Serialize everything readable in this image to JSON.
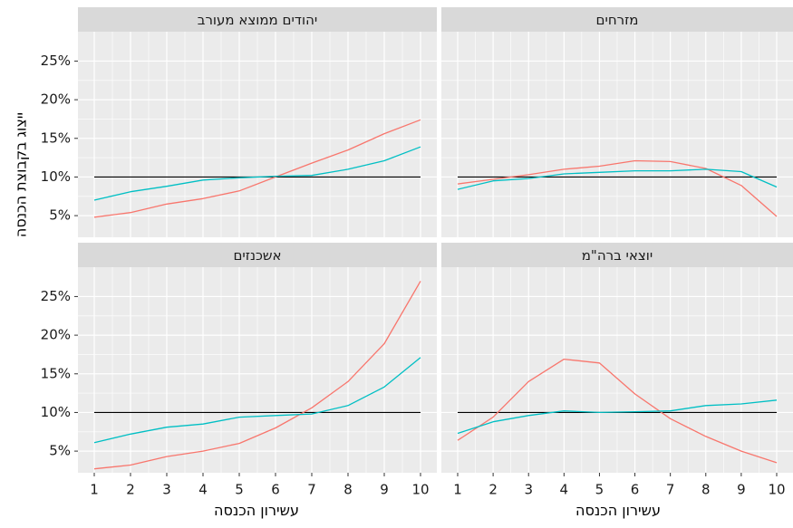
{
  "chart_data": {
    "type": "line",
    "x": [
      1,
      2,
      3,
      4,
      5,
      6,
      7,
      8,
      9,
      10
    ],
    "xlabel": "עשירון הכנסה",
    "ylabel": "ייצוג בקבוצת הכנסה",
    "ylim": [
      2.2,
      28.8
    ],
    "yticks": [
      5,
      10,
      15,
      20,
      25
    ],
    "ytick_labels": [
      "5%",
      "10%",
      "15%",
      "20%",
      "25%"
    ],
    "xtick_labels": [
      "1",
      "2",
      "3",
      "4",
      "5",
      "6",
      "7",
      "8",
      "9",
      "10"
    ],
    "reference_line": 10,
    "grid": true,
    "legend": "none",
    "colors": {
      "series_1": "#F8766D",
      "series_2": "#00BFC4",
      "reference": "#000000",
      "panel_bg": "#EBEBEB",
      "strip_bg": "#D9D9D9",
      "grid": "#FFFFFF"
    },
    "panels": [
      {
        "title": "יהודים ממוצא מעורב",
        "series": [
          {
            "values": [
              4.8,
              5.4,
              6.5,
              7.2,
              8.2,
              10.0,
              11.8,
              13.5,
              15.6,
              17.4
            ]
          },
          {
            "values": [
              7.0,
              8.1,
              8.8,
              9.6,
              9.9,
              10.1,
              10.2,
              11.0,
              12.1,
              13.9
            ]
          }
        ]
      },
      {
        "title": "מזרחים",
        "series": [
          {
            "values": [
              9.1,
              9.7,
              10.3,
              11.0,
              11.4,
              12.1,
              12.0,
              11.1,
              8.9,
              4.9
            ]
          },
          {
            "values": [
              8.4,
              9.5,
              9.8,
              10.4,
              10.6,
              10.8,
              10.8,
              11.0,
              10.7,
              8.7
            ]
          }
        ]
      },
      {
        "title": "אשכנזים",
        "series": [
          {
            "values": [
              2.7,
              3.2,
              4.3,
              5.0,
              6.0,
              8.0,
              10.6,
              14.0,
              18.9,
              27.0
            ]
          },
          {
            "values": [
              6.1,
              7.2,
              8.1,
              8.5,
              9.4,
              9.6,
              9.8,
              10.9,
              13.3,
              17.1
            ]
          }
        ]
      },
      {
        "title": "יוצאי ברה\"מ",
        "series": [
          {
            "values": [
              6.4,
              9.4,
              14.0,
              16.9,
              16.4,
              12.4,
              9.2,
              6.9,
              5.0,
              3.5
            ]
          },
          {
            "values": [
              7.3,
              8.8,
              9.6,
              10.2,
              10.0,
              10.1,
              10.2,
              10.9,
              11.1,
              11.6
            ]
          }
        ]
      }
    ]
  }
}
